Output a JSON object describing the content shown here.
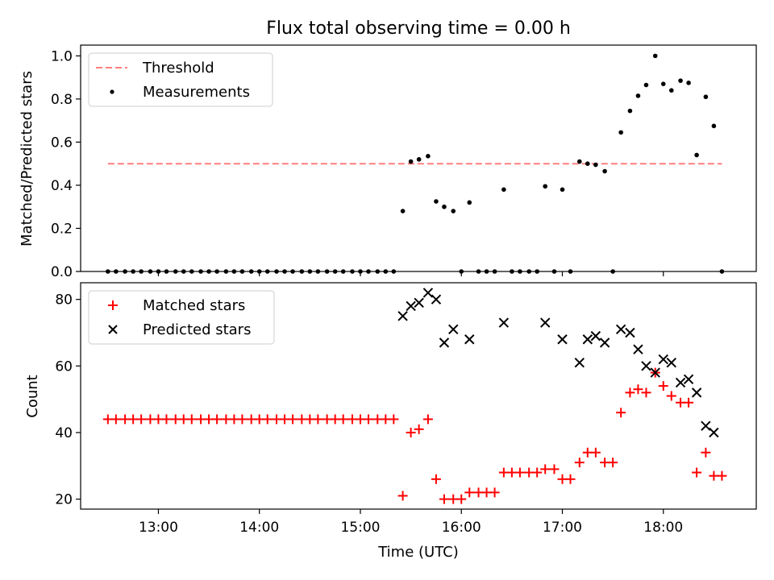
{
  "title": "Flux total observing time = 0.00 h",
  "chart_data": [
    {
      "type": "scatter",
      "panel": "top",
      "ylabel": "Matched/Predicted stars",
      "ylim": [
        0,
        1.05
      ],
      "yticks": [
        0.0,
        0.2,
        0.4,
        0.6,
        0.8,
        1.0
      ],
      "ytick_labels": [
        "0.0",
        "0.2",
        "0.4",
        "0.6",
        "0.8",
        "1.0"
      ],
      "xlim_hours": [
        12.23,
        18.92
      ],
      "xticks_hours": [
        13,
        14,
        15,
        16,
        17,
        18
      ],
      "legend_position": "upper-left",
      "series": [
        {
          "name": "Threshold",
          "style": "dashed-line",
          "color": "#ff7f7f",
          "x": [
            12.5,
            18.58
          ],
          "y": [
            0.5,
            0.5
          ]
        },
        {
          "name": "Measurements",
          "style": "dot",
          "color": "#000000",
          "x": [
            12.5,
            12.58,
            12.67,
            12.75,
            12.83,
            12.92,
            13.0,
            13.08,
            13.17,
            13.25,
            13.33,
            13.42,
            13.5,
            13.58,
            13.67,
            13.75,
            13.83,
            13.92,
            14.0,
            14.08,
            14.17,
            14.25,
            14.33,
            14.42,
            14.5,
            14.58,
            14.67,
            14.75,
            14.83,
            14.92,
            15.0,
            15.08,
            15.17,
            15.25,
            15.33,
            15.42,
            15.5,
            15.58,
            15.67,
            15.75,
            15.83,
            15.92,
            16.0,
            16.08,
            16.17,
            16.25,
            16.33,
            16.42,
            16.5,
            16.58,
            16.67,
            16.75,
            16.83,
            16.92,
            17.0,
            17.08,
            17.17,
            17.25,
            17.33,
            17.42,
            17.5,
            17.58,
            17.67,
            17.75,
            17.83,
            17.92,
            18.0,
            18.08,
            18.17,
            18.25,
            18.33,
            18.42,
            18.5,
            18.58
          ],
          "y": [
            0,
            0,
            0,
            0,
            0,
            0,
            0,
            0,
            0,
            0,
            0,
            0,
            0,
            0,
            0,
            0,
            0,
            0,
            0,
            0,
            0,
            0,
            0,
            0,
            0,
            0,
            0,
            0,
            0,
            0,
            0,
            0,
            0,
            0,
            0,
            0.28,
            0.51,
            0.52,
            0.535,
            0.325,
            0.3,
            0.28,
            0,
            0.32,
            0,
            0,
            0,
            0.38,
            0,
            0,
            0,
            0,
            0.395,
            0,
            0.38,
            0,
            0.51,
            0.5,
            0.495,
            0.465,
            0,
            0.645,
            0.745,
            0.815,
            0.865,
            1.0,
            0.87,
            0.84,
            0.885,
            0.875,
            0.54,
            0.81,
            0.675,
            0
          ]
        }
      ]
    },
    {
      "type": "scatter",
      "panel": "bottom",
      "xlabel": "Time (UTC)",
      "ylabel": "Count",
      "ylim": [
        17,
        85
      ],
      "yticks": [
        20,
        40,
        60,
        80
      ],
      "ytick_labels": [
        "20",
        "40",
        "60",
        "80"
      ],
      "xlim_hours": [
        12.23,
        18.92
      ],
      "xticks_hours": [
        13,
        14,
        15,
        16,
        17,
        18
      ],
      "xtick_labels": [
        "13:00",
        "14:00",
        "15:00",
        "16:00",
        "17:00",
        "18:00"
      ],
      "legend_position": "upper-left",
      "series": [
        {
          "name": "Matched stars",
          "style": "plus",
          "color": "#ff0000",
          "x": [
            12.5,
            12.58,
            12.67,
            12.75,
            12.83,
            12.92,
            13.0,
            13.08,
            13.17,
            13.25,
            13.33,
            13.42,
            13.5,
            13.58,
            13.67,
            13.75,
            13.83,
            13.92,
            14.0,
            14.08,
            14.17,
            14.25,
            14.33,
            14.42,
            14.5,
            14.58,
            14.67,
            14.75,
            14.83,
            14.92,
            15.0,
            15.08,
            15.17,
            15.25,
            15.33,
            15.42,
            15.5,
            15.58,
            15.67,
            15.75,
            15.83,
            15.92,
            16.0,
            16.08,
            16.17,
            16.25,
            16.33,
            16.42,
            16.5,
            16.58,
            16.67,
            16.75,
            16.83,
            16.92,
            17.0,
            17.08,
            17.17,
            17.25,
            17.33,
            17.42,
            17.5,
            17.58,
            17.67,
            17.75,
            17.83,
            17.92,
            18.0,
            18.08,
            18.17,
            18.25,
            18.33,
            18.42,
            18.5,
            18.58
          ],
          "y": [
            44,
            44,
            44,
            44,
            44,
            44,
            44,
            44,
            44,
            44,
            44,
            44,
            44,
            44,
            44,
            44,
            44,
            44,
            44,
            44,
            44,
            44,
            44,
            44,
            44,
            44,
            44,
            44,
            44,
            44,
            44,
            44,
            44,
            44,
            44,
            21,
            40,
            41,
            44,
            26,
            20,
            20,
            20,
            22,
            22,
            22,
            22,
            28,
            28,
            28,
            28,
            28,
            29,
            29,
            26,
            26,
            31,
            34,
            34,
            31,
            31,
            46,
            52,
            53,
            52,
            58,
            54,
            51,
            49,
            49,
            28,
            34,
            27,
            27
          ]
        },
        {
          "name": "Predicted stars",
          "style": "x",
          "color": "#000000",
          "x": [
            15.42,
            15.5,
            15.58,
            15.67,
            15.75,
            15.83,
            15.92,
            16.08,
            16.42,
            16.83,
            17.0,
            17.17,
            17.25,
            17.33,
            17.42,
            17.58,
            17.67,
            17.75,
            17.83,
            17.92,
            18.0,
            18.08,
            18.17,
            18.25,
            18.33,
            18.42,
            18.5
          ],
          "y": [
            75,
            78,
            79,
            82,
            80,
            67,
            71,
            68,
            73,
            73,
            68,
            61,
            68,
            69,
            67,
            71,
            70,
            65,
            60,
            58,
            62,
            61,
            55,
            56,
            52,
            42,
            40
          ]
        }
      ]
    }
  ]
}
